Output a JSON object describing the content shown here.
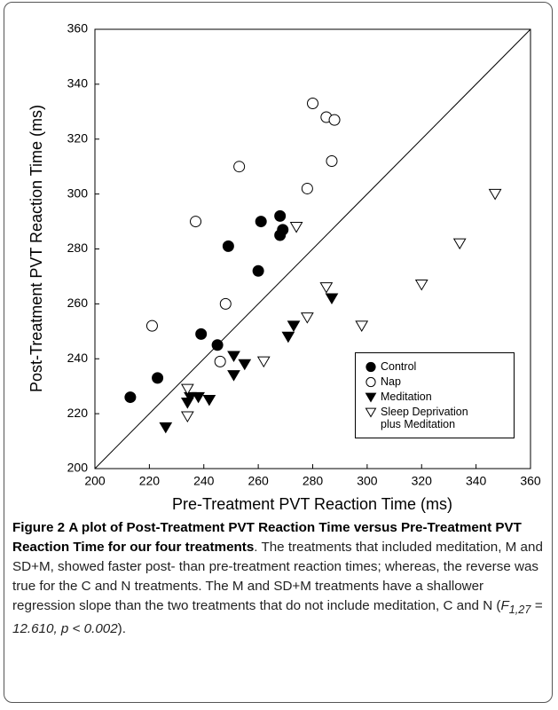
{
  "chart_data": {
    "type": "scatter",
    "x_label": "Pre-Treatment PVT Reaction Time (ms)",
    "y_label": "Post-Treatment PVT Reaction Time (ms)",
    "xlim": [
      200,
      360
    ],
    "ylim": [
      200,
      360
    ],
    "xticks": [
      200,
      220,
      240,
      260,
      280,
      300,
      320,
      340,
      360
    ],
    "yticks": [
      200,
      220,
      240,
      260,
      280,
      300,
      320,
      340,
      360
    ],
    "identity_line": true,
    "legend": "lower right",
    "series": [
      {
        "name": "Control",
        "color": "#000000",
        "marker": "circle",
        "filled": true,
        "x": [
          213,
          223,
          239,
          245,
          249,
          260,
          261,
          268,
          268,
          269
        ],
        "values": [
          226,
          233,
          249,
          245,
          281,
          272,
          290,
          292,
          285,
          287
        ]
      },
      {
        "name": "Nap",
        "color": "#000000",
        "marker": "circle",
        "filled": false,
        "x": [
          221,
          237,
          246,
          248,
          253,
          278,
          280,
          285,
          287,
          288
        ],
        "values": [
          252,
          290,
          239,
          260,
          310,
          302,
          333,
          328,
          312,
          327
        ]
      },
      {
        "name": "Meditation",
        "color": "#000000",
        "marker": "triangle-down",
        "filled": true,
        "x": [
          226,
          234,
          235,
          238,
          242,
          251,
          251,
          255,
          271,
          273,
          287
        ],
        "values": [
          215,
          224,
          226,
          226,
          225,
          234,
          241,
          238,
          248,
          252,
          262
        ]
      },
      {
        "name": "Sleep Deprivation plus Meditation",
        "color": "#000000",
        "marker": "triangle-down",
        "filled": false,
        "x": [
          234,
          234,
          262,
          274,
          278,
          285,
          298,
          320,
          334,
          347
        ],
        "values": [
          229,
          219,
          239,
          288,
          255,
          266,
          252,
          267,
          282,
          300
        ]
      }
    ]
  },
  "caption": {
    "label": "Figure 2",
    "title": "A plot of Post-Treatment PVT Reaction Time versus Pre-Treatment PVT Reaction Time for our four treatments",
    "body": ". The treatments that included meditation, M and SD+M, showed faster post- than pre-treatment reaction times; whereas, the reverse was true for the C and N treatments. The M and SD+M treatments have a shallower regression slope than the two treatments that do not include meditation, C and N (",
    "stat_symbol": "F",
    "stat_subscript": "1,27",
    "stat_rest": " = 12.610, p < 0.002",
    "end": ")."
  }
}
